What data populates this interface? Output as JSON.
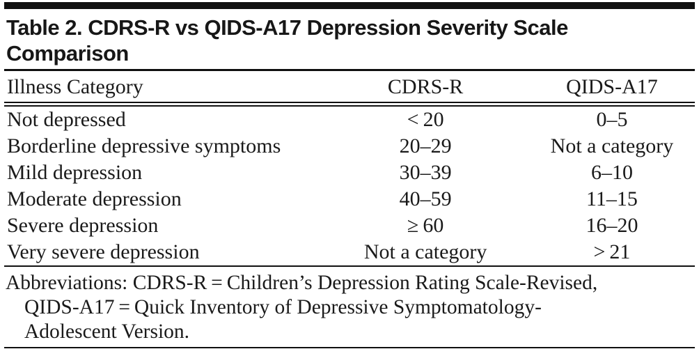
{
  "title": {
    "line1": "Table 2. CDRS-R vs QIDS-A17 Depression Severity Scale",
    "line2": "Comparison"
  },
  "table": {
    "columns": [
      "Illness Category",
      "CDRS-R",
      "QIDS-A17"
    ],
    "rows": [
      {
        "category": "Not depressed",
        "cdrs_r": "< 20",
        "qids_a17": "0–5"
      },
      {
        "category": "Borderline depressive symptoms",
        "cdrs_r": "20–29",
        "qids_a17": "Not a category"
      },
      {
        "category": "Mild depression",
        "cdrs_r": "30–39",
        "qids_a17": "6–10"
      },
      {
        "category": "Moderate depression",
        "cdrs_r": "40–59",
        "qids_a17": "11–15"
      },
      {
        "category": "Severe depression",
        "cdrs_r": "≥ 60",
        "qids_a17": "16–20"
      },
      {
        "category": "Very severe depression",
        "cdrs_r": "Not a category",
        "qids_a17": "> 21"
      }
    ]
  },
  "footnote": {
    "lines": [
      "Abbreviations: CDRS-R = Children’s Depression Rating Scale-Revised,",
      "QIDS-A17 = Quick Inventory of Depressive Symptomatology-",
      "Adolescent Version."
    ]
  },
  "colors": {
    "text": "#1a1a1a",
    "rule": "#101010",
    "background": "#ffffff"
  }
}
